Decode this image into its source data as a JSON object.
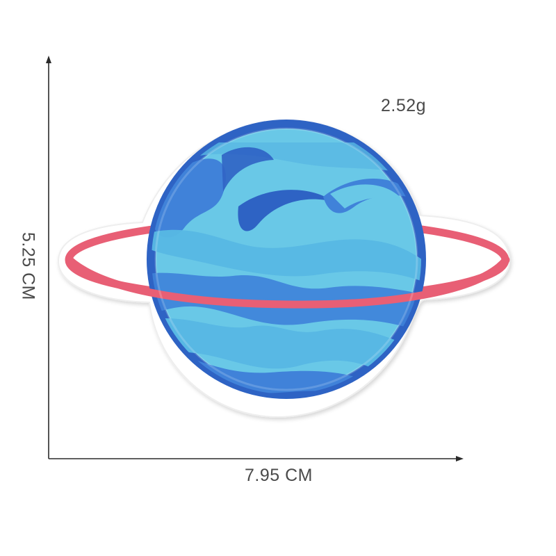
{
  "product": {
    "weight_label": "2.52g",
    "width_label": "7.95 CM",
    "height_label": "5.25 CM",
    "image_subject": "planet-patch-illustration"
  },
  "colors": {
    "background": "#ffffff",
    "text": "#4a4a4a",
    "dimension_line": "#2a2a2a",
    "patch_border": "#ffffff",
    "planet_outline": "#2f63c4",
    "planet_fill": "#68c9e8",
    "planet_swirl": "#3e83d8",
    "ring": "#e85f74"
  }
}
